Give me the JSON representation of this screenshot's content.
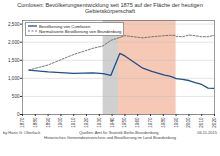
{
  "chart_data": {
    "type": "line",
    "title": "Cumlosen: Bevölkerungsentwicklung seit 1875 auf der Fläche der heutigen Gebietskörperschaft",
    "x": [
      1875,
      1890,
      1910,
      1925,
      1933,
      1939,
      1946,
      1950,
      1964,
      1971,
      1981,
      1985,
      1989,
      1990,
      1995,
      2000,
      2005,
      2010,
      2015,
      2020
    ],
    "series": [
      {
        "name": "Bevölkerung von Cumlosen",
        "color": "#1f4e8c",
        "line_style": "solid",
        "values": [
          1230,
          1180,
          1140,
          1150,
          1130,
          1080,
          1690,
          1620,
          1280,
          1190,
          1090,
          1060,
          1010,
          990,
          970,
          940,
          880,
          830,
          730,
          720
        ]
      },
      {
        "name": "Normalisierte Bevölkerung von Brandenburg",
        "color": "#666666",
        "line_style": "dashed",
        "values": [
          1230,
          1370,
          1660,
          1830,
          1900,
          2050,
          2130,
          2180,
          2120,
          2150,
          2180,
          2190,
          2190,
          2160,
          2150,
          2200,
          2180,
          2150,
          2150,
          2190
        ]
      }
    ],
    "xlim": [
      1870,
      2020
    ],
    "xticks": [
      1870,
      1880,
      1890,
      1900,
      1910,
      1920,
      1930,
      1940,
      1950,
      1960,
      1970,
      1980,
      1990,
      2000,
      2010,
      2020
    ],
    "ylim": [
      0,
      2600
    ],
    "yticks": [
      0,
      500,
      {
        "value": 1000,
        "label": "1,000"
      },
      {
        "value": 1500,
        "label": "1,500"
      },
      {
        "value": 2000,
        "label": "2,000"
      },
      {
        "value": 2500,
        "label": "2,500"
      }
    ],
    "grid": true,
    "legend": "top-left",
    "shaded_spans": [
      {
        "start": 1933,
        "end": 1945,
        "color": "#d0d0d0"
      },
      {
        "start": 1945,
        "end": 1990,
        "color": "#f6c9b6"
      }
    ],
    "annotations": {
      "author": "by Hans G. Oberlack",
      "date": "06.11.2015",
      "source": [
        "Quellen: Amt für Statistik Berlin-Brandenburg",
        "Historisches Gemeindeverzeichnis und Bevölkerung im Land Brandenburg"
      ]
    }
  }
}
